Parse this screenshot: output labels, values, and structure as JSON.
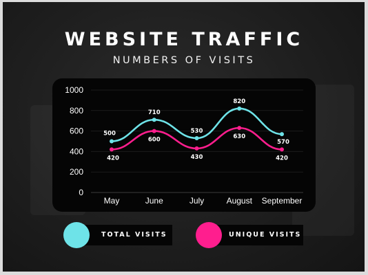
{
  "header": {
    "title": "WEBSITE TRAFFIC",
    "subtitle": "NUMBERS OF VISITS"
  },
  "colors": {
    "total": "#6ee3e8",
    "unique": "#ff1e8e",
    "axis_text": "#ffffff",
    "panel": "#050505"
  },
  "legend": {
    "total_label": "TOTAL VISITS",
    "unique_label": "UNIQUE VISITS"
  },
  "chart_data": {
    "type": "line",
    "categories": [
      "May",
      "June",
      "July",
      "August",
      "September"
    ],
    "series": [
      {
        "name": "TOTAL VISITS",
        "key": "total",
        "values": [
          500,
          710,
          530,
          820,
          570
        ]
      },
      {
        "name": "UNIQUE VISITS",
        "key": "unique",
        "values": [
          420,
          600,
          430,
          630,
          420
        ]
      }
    ],
    "yticks": [
      0,
      200,
      400,
      600,
      800,
      1000
    ],
    "ylim": [
      0,
      1000
    ],
    "grid": true,
    "smooth": true,
    "legend_position": "bottom"
  }
}
